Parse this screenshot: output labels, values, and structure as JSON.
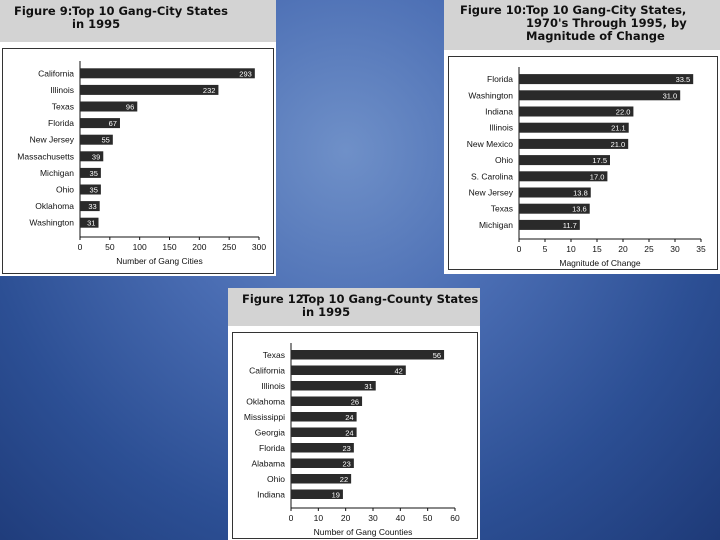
{
  "chart_data": [
    {
      "type": "bar",
      "orientation": "horizontal",
      "figure_label": "Figure 9:",
      "title_lines": [
        "Top 10 Gang-City States",
        "in 1995"
      ],
      "xlabel": "Number of Gang Cities",
      "xlim": [
        0,
        300
      ],
      "xticks": [
        0,
        50,
        100,
        150,
        200,
        250,
        300
      ],
      "categories": [
        "California",
        "Illinois",
        "Texas",
        "Florida",
        "New Jersey",
        "Massachusetts",
        "Michigan",
        "Ohio",
        "Oklahoma",
        "Washington"
      ],
      "values": [
        293,
        232,
        96,
        67,
        55,
        39,
        35,
        35,
        33,
        31
      ],
      "value_labels": [
        "293",
        "232",
        "96",
        "67",
        "55",
        "39",
        "35",
        "35",
        "33",
        "31"
      ],
      "bar_color": "#2a2a2a"
    },
    {
      "type": "bar",
      "orientation": "horizontal",
      "figure_label": "Figure 10:",
      "title_lines": [
        "Top 10 Gang-City States,",
        "1970's Through 1995, by",
        "Magnitude of Change"
      ],
      "xlabel": "Magnitude of Change",
      "xlim": [
        0,
        35
      ],
      "xticks": [
        0,
        5,
        10,
        15,
        20,
        25,
        30,
        35
      ],
      "categories": [
        "Florida",
        "Washington",
        "Indiana",
        "Illinois",
        "New Mexico",
        "Ohio",
        "S. Carolina",
        "New Jersey",
        "Texas",
        "Michigan"
      ],
      "values": [
        33.5,
        31.0,
        22.0,
        21.1,
        21.0,
        17.5,
        17.0,
        13.8,
        13.6,
        11.7
      ],
      "value_labels": [
        "33.5",
        "31.0",
        "22.0",
        "21.1",
        "21.0",
        "17.5",
        "17.0",
        "13.8",
        "13.6",
        "11.7"
      ],
      "bar_color": "#2a2a2a"
    },
    {
      "type": "bar",
      "orientation": "horizontal",
      "figure_label": "Figure 12:",
      "title_lines": [
        "Top 10 Gang-County States",
        "in 1995"
      ],
      "xlabel": "Number of Gang Counties",
      "xlim": [
        0,
        60
      ],
      "xticks": [
        0,
        10,
        20,
        30,
        40,
        50,
        60
      ],
      "categories": [
        "Texas",
        "California",
        "Illinois",
        "Oklahoma",
        "Mississippi",
        "Georgia",
        "Florida",
        "Alabama",
        "Ohio",
        "Indiana"
      ],
      "values": [
        56,
        42,
        31,
        26,
        24,
        24,
        23,
        23,
        22,
        19
      ],
      "value_labels": [
        "56",
        "42",
        "31",
        "26",
        "24",
        "24",
        "23",
        "23",
        "22",
        "19"
      ],
      "bar_color": "#2a2a2a"
    }
  ]
}
